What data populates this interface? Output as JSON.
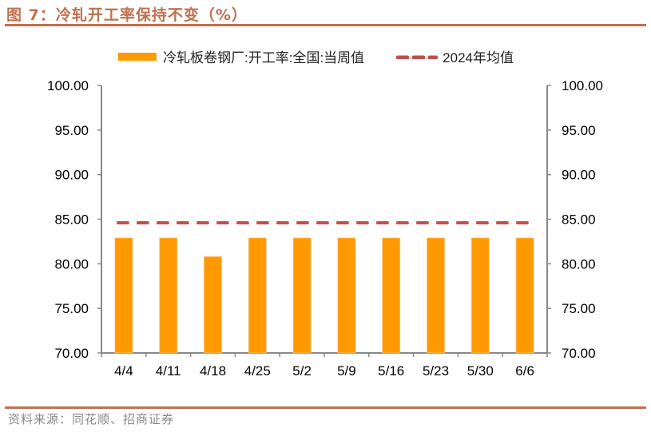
{
  "title": "图 7：冷轧开工率保持不变（%）",
  "source": "资料来源：同花顺、招商证券",
  "legend": {
    "bar_label": "冷轧板卷钢厂:开工率:全国:当周值",
    "line_label": "2024年均值"
  },
  "colors": {
    "bar": "#ff9900",
    "line": "#c0504d",
    "accent": "#c0704f",
    "axis": "#888888"
  },
  "chart_data": {
    "type": "bar",
    "title": "冷轧开工率保持不变（%）",
    "xlabel": "",
    "ylabel": "",
    "ylim": [
      70,
      100
    ],
    "yticks": [
      "70.00",
      "75.00",
      "80.00",
      "85.00",
      "90.00",
      "95.00",
      "100.00"
    ],
    "y2ticks": [
      "70.00",
      "75.00",
      "80.00",
      "85.00",
      "90.00",
      "95.00",
      "100.00"
    ],
    "grid": false,
    "legend_position": "top",
    "categories": [
      "4/4",
      "4/11",
      "4/18",
      "4/25",
      "5/2",
      "5/9",
      "5/16",
      "5/23",
      "5/30",
      "6/6"
    ],
    "series": [
      {
        "name": "冷轧板卷钢厂:开工率:全国:当周值",
        "type": "bar",
        "values": [
          82.9,
          82.9,
          80.8,
          82.9,
          82.9,
          82.9,
          82.9,
          82.9,
          82.9,
          82.9
        ]
      },
      {
        "name": "2024年均值",
        "type": "line-dashed",
        "values": [
          84.6,
          84.6,
          84.6,
          84.6,
          84.6,
          84.6,
          84.6,
          84.6,
          84.6,
          84.6
        ]
      }
    ]
  }
}
